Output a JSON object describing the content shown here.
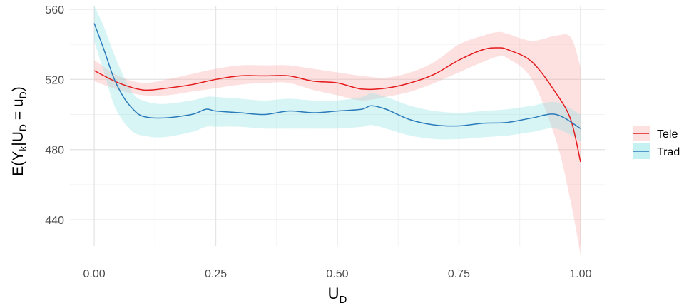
{
  "chart_data": {
    "type": "line",
    "xlabel": {
      "main": "U",
      "sub": "D"
    },
    "ylabel": {
      "p1": "E(Y",
      "s1": "k",
      "p2": "|U",
      "s2": "D",
      "p3": " = u",
      "s3": "D",
      "p4": ")"
    },
    "xlim": [
      -0.05,
      1.05
    ],
    "ylim": [
      425,
      562
    ],
    "x_ticks": [
      0.0,
      0.25,
      0.5,
      0.75,
      1.0
    ],
    "x_tick_labels": [
      "0.00",
      "0.25",
      "0.50",
      "0.75",
      "1.00"
    ],
    "y_ticks": [
      440,
      480,
      520,
      560
    ],
    "y_tick_labels": [
      "440",
      "480",
      "520",
      "560"
    ],
    "grid": true,
    "legend_position": "right",
    "series": [
      {
        "name": "Tele",
        "color": "#e41a1c",
        "band_color": "#f8a8a8",
        "x": [
          0.0,
          0.05,
          0.1,
          0.15,
          0.2,
          0.25,
          0.3,
          0.35,
          0.4,
          0.45,
          0.5,
          0.55,
          0.6,
          0.65,
          0.7,
          0.75,
          0.8,
          0.83,
          0.85,
          0.9,
          0.95,
          0.98,
          1.0
        ],
        "y": [
          525,
          518,
          514,
          515,
          517,
          520,
          522,
          522,
          522,
          519,
          518,
          514.5,
          515,
          518,
          523,
          531,
          537,
          538,
          537,
          530,
          512,
          497,
          473
        ],
        "lower": [
          519,
          514,
          511,
          511,
          513,
          515,
          517,
          518,
          518,
          514,
          511,
          508,
          510,
          513,
          518,
          524,
          530,
          533,
          532,
          520,
          485,
          450,
          420
        ],
        "upper": [
          531,
          522,
          518,
          520,
          523,
          526,
          528,
          528,
          528,
          526,
          524,
          522,
          521,
          524,
          530,
          540,
          545,
          547,
          546,
          542,
          545,
          544,
          527
        ]
      },
      {
        "name": "Trad",
        "color": "#2b7bba",
        "band_color": "#8ee3e6",
        "x": [
          0.0,
          0.02,
          0.04,
          0.06,
          0.08,
          0.1,
          0.14,
          0.2,
          0.23,
          0.25,
          0.3,
          0.35,
          0.4,
          0.45,
          0.5,
          0.55,
          0.57,
          0.6,
          0.65,
          0.7,
          0.75,
          0.8,
          0.85,
          0.9,
          0.95,
          1.0
        ],
        "y": [
          552,
          537,
          521,
          510,
          503,
          499,
          498,
          500,
          503,
          502,
          501,
          500,
          502,
          501,
          502,
          503,
          505,
          503,
          497,
          494,
          493.5,
          495,
          495.5,
          498,
          500,
          492
        ],
        "lower": [
          542,
          524,
          506,
          496,
          490,
          488,
          487,
          490,
          493,
          493,
          493,
          492,
          492,
          492,
          492,
          493,
          494,
          492,
          488,
          486,
          486,
          487,
          488,
          490,
          492,
          485
        ],
        "upper": [
          562,
          550,
          535,
          522,
          512,
          508,
          506,
          508,
          510,
          510,
          509,
          508,
          509,
          508,
          508,
          510,
          512,
          510,
          505,
          502,
          501,
          502,
          503,
          505,
          507,
          500
        ]
      }
    ]
  }
}
